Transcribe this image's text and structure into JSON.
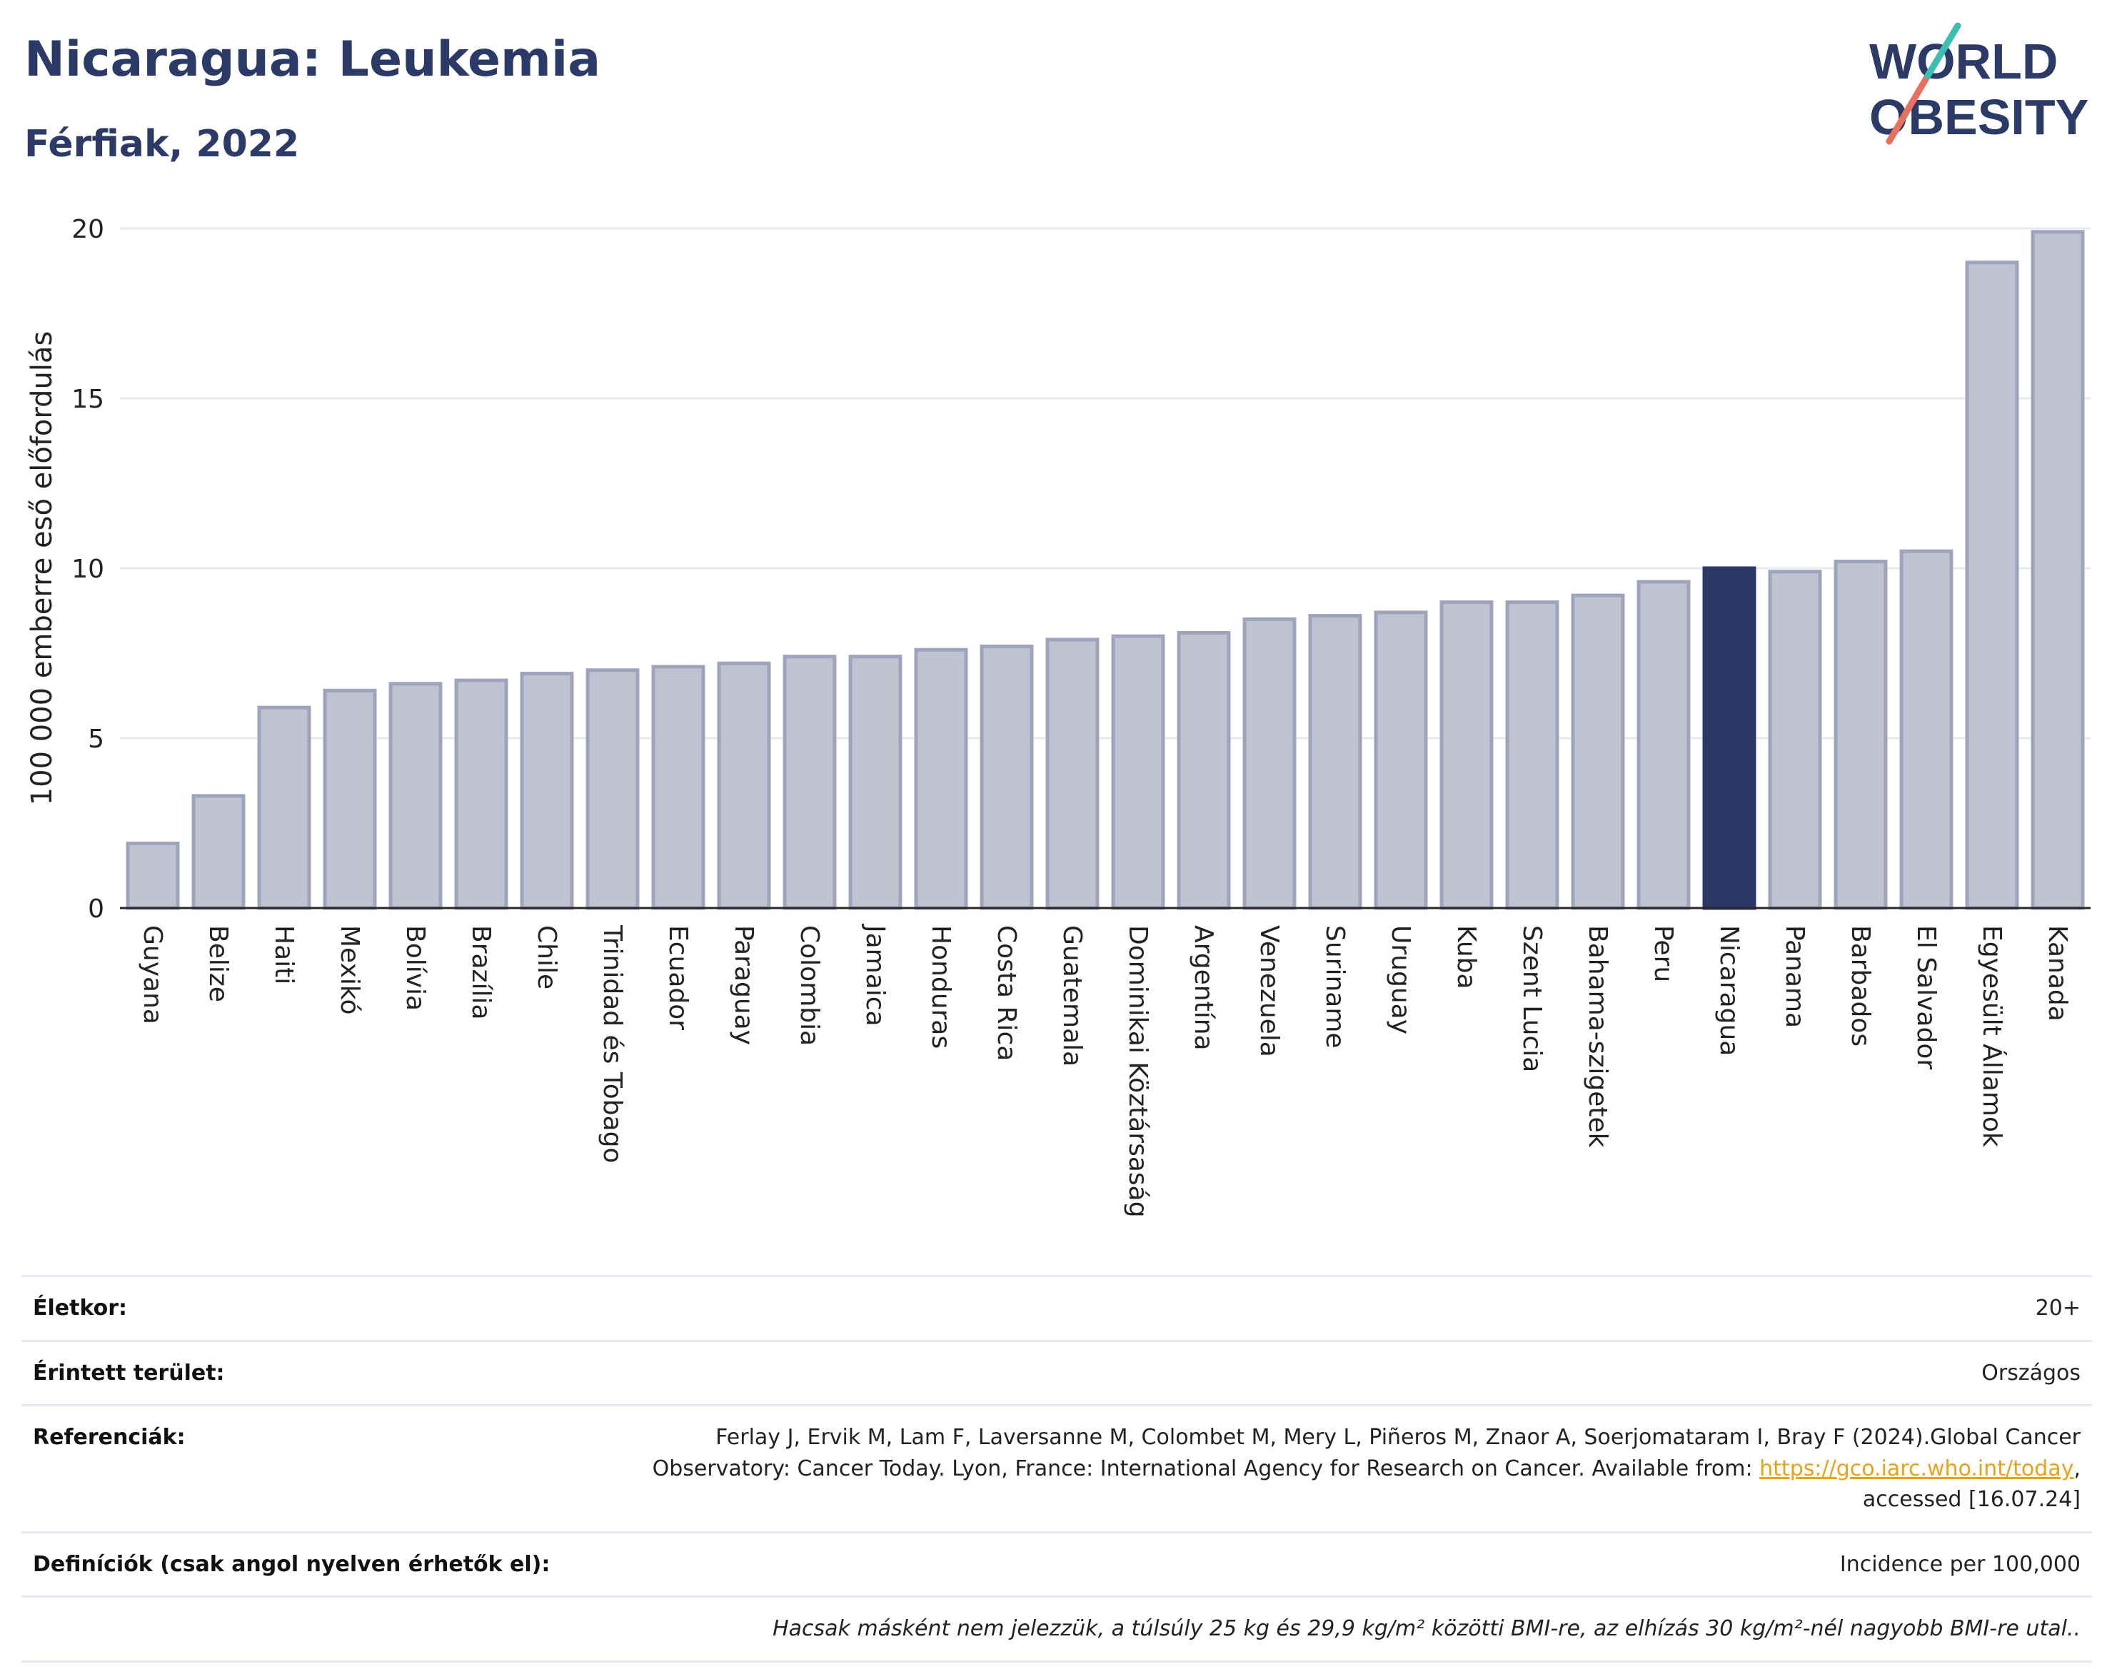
{
  "header": {
    "title": "Nicaragua: Leukemia",
    "subtitle": "Férfiak, 2022"
  },
  "logo": {
    "line1": "WORLD",
    "line2": "OBESITY"
  },
  "colors": {
    "bar": "#bfc3cf",
    "bar_border": "#9ea4bb",
    "highlight": "#2b3765",
    "grid": "#e9ebf0",
    "title": "#2b3a67"
  },
  "chart_data": {
    "type": "bar",
    "ylabel": "100 000 emberre eső előfordulás",
    "ylim": [
      0,
      20
    ],
    "yticks": [
      0,
      5,
      10,
      15,
      20
    ],
    "grid": true,
    "highlight": "Nicaragua",
    "categories": [
      "Guyana",
      "Belize",
      "Haiti",
      "Mexikó",
      "Bolívia",
      "Brazília",
      "Chile",
      "Trinidad és Tobago",
      "Ecuador",
      "Paraguay",
      "Colombia",
      "Jamaica",
      "Honduras",
      "Costa Rica",
      "Guatemala",
      "Dominikai Köztársaság",
      "Argentína",
      "Venezuela",
      "Suriname",
      "Uruguay",
      "Kuba",
      "Szent Lucia",
      "Bahama-szigetek",
      "Peru",
      "Nicaragua",
      "Panama",
      "Barbados",
      "El Salvador",
      "Egyesült Államok",
      "Kanada"
    ],
    "values": [
      1.9,
      3.3,
      5.9,
      6.4,
      6.6,
      6.7,
      6.9,
      7.0,
      7.1,
      7.2,
      7.4,
      7.4,
      7.6,
      7.7,
      7.9,
      8.0,
      8.1,
      8.5,
      8.6,
      8.7,
      9.0,
      9.0,
      9.2,
      9.6,
      10.0,
      9.9,
      10.2,
      10.5,
      19.0,
      19.9
    ]
  },
  "meta": {
    "age_label": "Életkor:",
    "age_value": "20+",
    "area_label": "Érintett terület:",
    "area_value": "Országos",
    "ref_label": "Referenciák:",
    "ref_text1": "Ferlay J, Ervik M, Lam F, Laversanne M, Colombet M, Mery L, Piñeros M, Znaor A, Soerjomataram I, Bray F (2024).Global Cancer Observatory: Cancer Today. Lyon, France: International Agency for Research on Cancer. Available from: ",
    "ref_link": "https://gco.iarc.who.int/today",
    "ref_text2": ", accessed [16.07.24]",
    "def_label": "Definíciók (csak angol nyelven érhetők el):",
    "def_value": "Incidence per 100,000",
    "footnote": "Hacsak másként nem jelezzük, a túlsúly 25 kg és 29,9 kg/m² közötti BMI-re, az elhízás 30 kg/m²-nél nagyobb BMI-re utal.."
  }
}
